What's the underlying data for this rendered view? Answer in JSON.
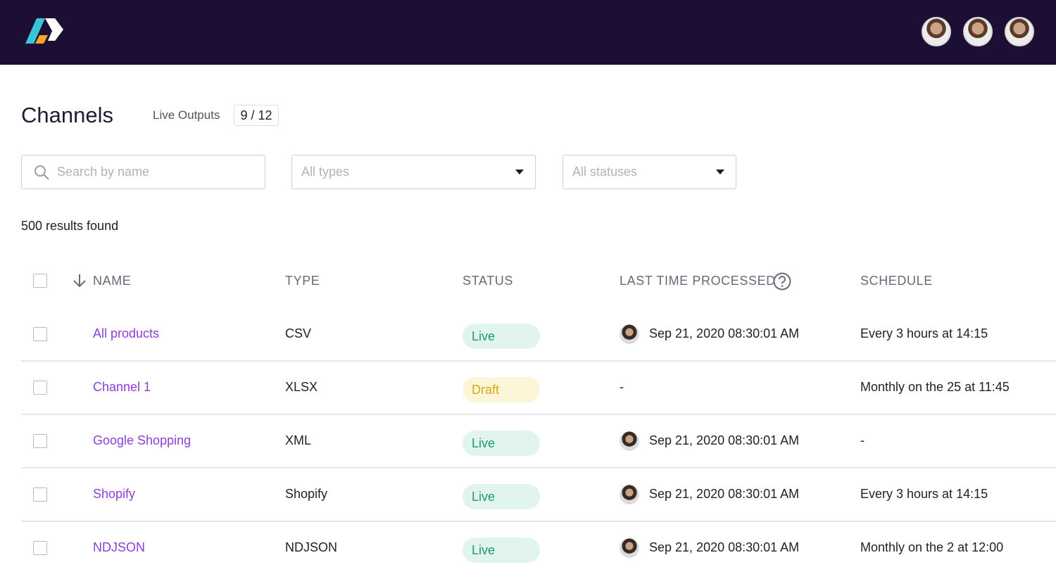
{
  "header": {
    "title": "Channels",
    "live_outputs_label": "Live Outputs",
    "live_outputs_count": "9 / 12"
  },
  "filters": {
    "search_placeholder": "Search by name",
    "type_placeholder": "All types",
    "status_placeholder": "All statuses"
  },
  "results": "500 results found",
  "table": {
    "columns": [
      "NAME",
      "TYPE",
      "STATUS",
      "LAST TIME PROCESSED",
      "SCHEDULE"
    ],
    "rows": [
      {
        "name": "All products",
        "type": "CSV",
        "status": "Live",
        "status_color": "#1f9a63",
        "status_background": "#e1f5ee",
        "last_processed": "Sep 21, 2020 08:30:01 AM",
        "avatar": true,
        "schedule": "Every 3 hours at 14:15"
      },
      {
        "name": "Channel 1",
        "type": "XLSX",
        "status": "Draft",
        "status_color": "#d9a812",
        "status_background": "#fdf6d6",
        "last_processed": "-",
        "avatar": false,
        "schedule": "Monthly on the 25 at 11:45"
      },
      {
        "name": "Google Shopping",
        "type": "XML",
        "status": "Live",
        "status_color": "#1f9a63",
        "status_background": "#e1f5ee",
        "last_processed": "Sep 21, 2020 08:30:01 AM",
        "avatar": true,
        "schedule": "-"
      },
      {
        "name": "Shopify",
        "type": "Shopify",
        "status": "Live",
        "status_color": "#1f9a63",
        "status_background": "#e1f5ee",
        "last_processed": "Sep 21, 2020 08:30:01 AM",
        "avatar": true,
        "schedule": "Every 3 hours at 14:15"
      },
      {
        "name": "NDJSON",
        "type": "NDJSON",
        "status": "Live",
        "status_color": "#1f9a63",
        "status_background": "#e1f5ee",
        "last_processed": "Sep 21, 2020 08:30:01 AM",
        "avatar": true,
        "schedule": "Monthly on the 2 at 12:00"
      }
    ]
  }
}
